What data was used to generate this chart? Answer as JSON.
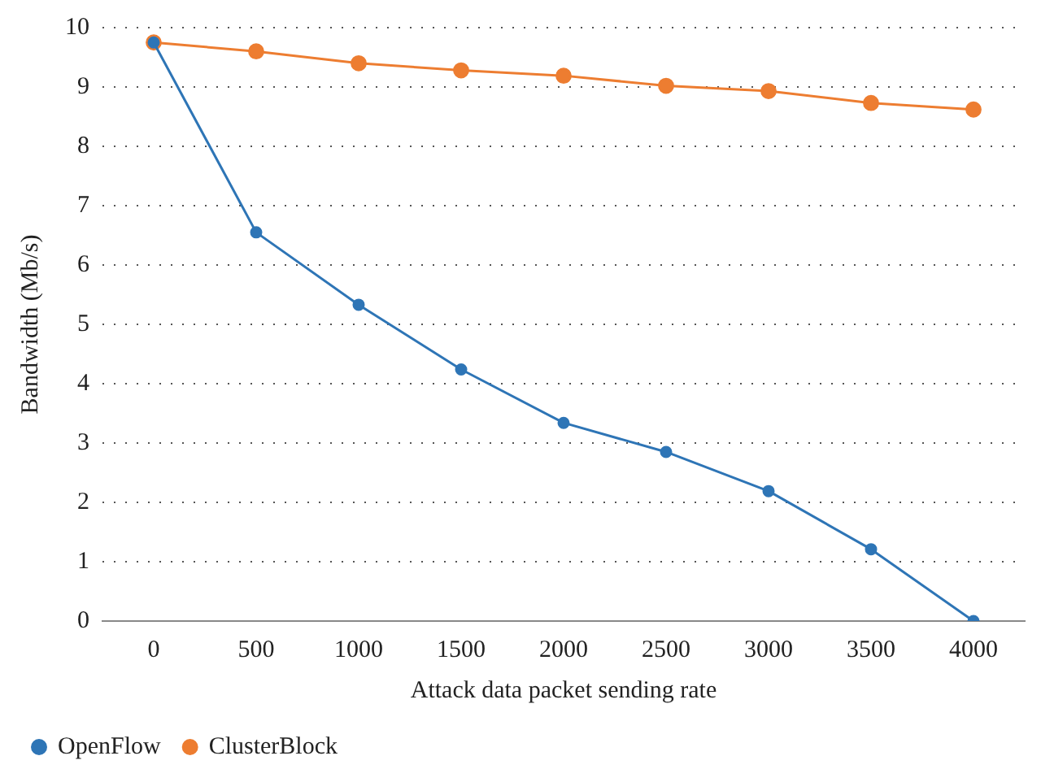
{
  "chart_data": {
    "type": "line",
    "xlabel": "Attack data packet sending rate",
    "ylabel": "Bandwidth (Mb/s)",
    "categories": [
      "0",
      "500",
      "1000",
      "1500",
      "2000",
      "2500",
      "3000",
      "3500",
      "4000"
    ],
    "series": [
      {
        "name": "OpenFlow",
        "color": "#2e75b6",
        "values": [
          9.75,
          6.55,
          5.33,
          4.24,
          3.34,
          2.85,
          2.19,
          1.21,
          0
        ]
      },
      {
        "name": "ClusterBlock",
        "color": "#ed7d31",
        "values": [
          9.75,
          9.6,
          9.4,
          9.28,
          9.19,
          9.02,
          8.93,
          8.73,
          8.62
        ]
      }
    ],
    "ylim": [
      0,
      10
    ],
    "yticks": [
      0,
      1,
      2,
      3,
      4,
      5,
      6,
      7,
      8,
      9,
      10
    ],
    "grid": "y",
    "legend": "bottom left",
    "marker": "circle",
    "line_style": "solid"
  }
}
